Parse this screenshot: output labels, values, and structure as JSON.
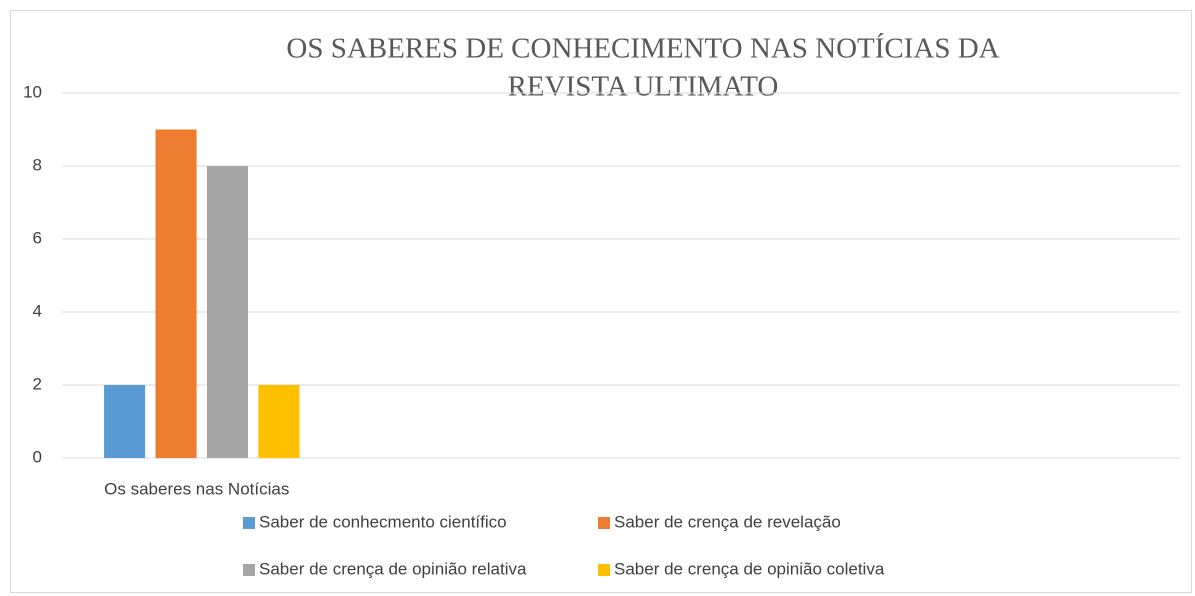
{
  "chart_data": {
    "type": "bar",
    "title": [
      "OS SABERES DE CONHECIMENTO NAS NOTÍCIAS DA",
      "REVISTA ULTIMATO"
    ],
    "categories": [
      "Os saberes nas Notícias",
      null,
      null,
      null
    ],
    "series": [
      {
        "name": "Saber de conhecmento científico",
        "color": "#5b9bd5",
        "values": [
          2,
          null,
          null,
          null
        ]
      },
      {
        "name": "Saber de crença de revelação",
        "color": "#ed7d31",
        "values": [
          9,
          null,
          null,
          null
        ]
      },
      {
        "name": "Saber de crença de opinião relativa",
        "color": "#a5a5a5",
        "values": [
          8,
          null,
          null,
          null
        ]
      },
      {
        "name": "Saber de crença de opinião coletiva",
        "color": "#ffc000",
        "values": [
          2,
          null,
          null,
          null
        ]
      }
    ],
    "ylim": [
      0,
      10
    ],
    "yticks": [
      0,
      2,
      4,
      6,
      8,
      10
    ],
    "grid": true,
    "legend": "bottom"
  }
}
